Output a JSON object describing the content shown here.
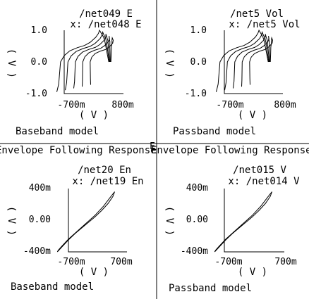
{
  "mid_marker": "E",
  "chart_data": [
    {
      "type": "line",
      "title": "/net049 E",
      "subtitle": "x: /net048 E",
      "xlabel": "( V )",
      "ylabel": "( V )",
      "xticks": [
        "-700m",
        "800m"
      ],
      "yticks": [
        "1.0",
        "0.0",
        "-1.0"
      ],
      "xlim": [
        -900,
        1000
      ],
      "ylim": [
        -1.0,
        1.0
      ],
      "caption": "Baseband model",
      "section_title": "Envelope Following Response",
      "grid": false,
      "series": [
        {
          "x": [
            -700,
            -650,
            -600,
            -500,
            -350,
            -150,
            50,
            200,
            350,
            420,
            450,
            500,
            560,
            600,
            650,
            700
          ],
          "y": [
            -0.95,
            -0.7,
            0.0,
            0.2,
            0.35,
            0.45,
            0.52,
            0.62,
            0.78,
            0.9,
            1.0,
            0.9,
            0.78,
            0.62,
            0.3,
            0.0
          ]
        }
      ]
    },
    {
      "type": "line",
      "title": "/net5 Vol",
      "subtitle": "x: /net5 Vol",
      "xlabel": "( V )",
      "ylabel": "( V )",
      "xticks": [
        "-700m",
        "800m"
      ],
      "yticks": [
        "1.0",
        "0.0",
        "-1.0"
      ],
      "xlim": [
        -900,
        1000
      ],
      "ylim": [
        -1.0,
        1.0
      ],
      "caption": "Passband model",
      "section_title": "Envelope Following Response",
      "grid": false,
      "series": [
        {
          "x": [
            -700,
            -650,
            -600,
            -500,
            -350,
            -150,
            50,
            200,
            350,
            420,
            450,
            500,
            560,
            600,
            650,
            700
          ],
          "y": [
            -0.95,
            -0.7,
            0.0,
            0.2,
            0.35,
            0.45,
            0.52,
            0.62,
            0.78,
            0.9,
            1.0,
            0.9,
            0.78,
            0.62,
            0.3,
            0.0
          ]
        }
      ]
    },
    {
      "type": "line",
      "title": "/net20 En",
      "subtitle": "x: /net19 En",
      "xlabel": "( V )",
      "ylabel": "( V )",
      "xticks": [
        "-700m",
        "700m"
      ],
      "yticks": [
        "400m",
        "0.00",
        "-400m"
      ],
      "xlim": [
        -800,
        800
      ],
      "ylim": [
        -400,
        400
      ],
      "caption": "Baseband model",
      "grid": false,
      "series": [
        {
          "x": [
            -700,
            -600,
            -450,
            -300,
            -150,
            0,
            150,
            300,
            450,
            560,
            600,
            500,
            350,
            150,
            -50,
            -250,
            -450,
            -600,
            -680,
            -700
          ],
          "y": [
            -400,
            -340,
            -250,
            -170,
            -100,
            -30,
            40,
            120,
            210,
            300,
            360,
            290,
            180,
            60,
            -40,
            -140,
            -240,
            -330,
            -380,
            -400
          ]
        }
      ]
    },
    {
      "type": "line",
      "title": "/net015 V",
      "subtitle": "x: /net014 V",
      "xlabel": "( V )",
      "ylabel": "( V )",
      "xticks": [
        "-700m",
        "700m"
      ],
      "yticks": [
        "400m",
        "0.00",
        "-400m"
      ],
      "xlim": [
        -800,
        800
      ],
      "ylim": [
        -400,
        400
      ],
      "caption": "Passband model",
      "grid": false,
      "series": [
        {
          "x": [
            -700,
            -600,
            -450,
            -300,
            -150,
            0,
            150,
            300,
            450,
            560,
            600,
            500,
            350,
            150,
            -50,
            -250,
            -450,
            -600,
            -680,
            -700
          ],
          "y": [
            -400,
            -340,
            -250,
            -170,
            -100,
            -30,
            40,
            120,
            210,
            300,
            360,
            290,
            180,
            60,
            -40,
            -140,
            -240,
            -330,
            -380,
            -400
          ]
        }
      ]
    }
  ]
}
